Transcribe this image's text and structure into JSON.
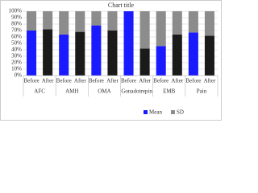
{
  "chart_data": {
    "type": "stacked_bar",
    "title": "Chart title",
    "categories": [
      "Before",
      "After",
      "Before",
      "After",
      "Before",
      "After",
      "Before",
      "After",
      "Before",
      "After",
      "Before",
      "After"
    ],
    "groups": [
      "AFC",
      "AMH",
      "OMA",
      "Gonadotrepin",
      "EMB",
      "Pain"
    ],
    "series": [
      {
        "name": "Mean",
        "color": "#1a1aff",
        "point_colors": [
          "#1a1aff",
          "#1a1a1a",
          "#1a1aff",
          "#1a1a1a",
          "#1a1aff",
          "#1a1a1a",
          "#1a1aff",
          "#1a1a1a",
          "#1a1aff",
          "#1a1a1a",
          "#1a1aff",
          "#1a1a1a"
        ],
        "values": [
          70,
          72,
          64,
          68,
          78,
          70,
          100,
          42,
          46,
          64,
          67,
          62
        ]
      },
      {
        "name": "SD",
        "color": "#8c8c8c",
        "values": [
          30,
          28,
          36,
          32,
          22,
          30,
          0,
          58,
          54,
          36,
          33,
          38
        ]
      }
    ],
    "ylim": [
      0,
      100
    ],
    "yticks": [
      {
        "value": 0,
        "label": "0%"
      },
      {
        "value": 10,
        "label": "10%"
      },
      {
        "value": 20,
        "label": "20%"
      },
      {
        "value": 30,
        "label": "30%"
      },
      {
        "value": 40,
        "label": "40%"
      },
      {
        "value": 50,
        "label": "50%"
      },
      {
        "value": 60,
        "label": "60%"
      },
      {
        "value": 70,
        "label": "70%"
      },
      {
        "value": 80,
        "label": "80%"
      },
      {
        "value": 90,
        "label": "90%"
      },
      {
        "value": 100,
        "label": "100%"
      }
    ],
    "grid": true,
    "legend": "bottom-right"
  }
}
